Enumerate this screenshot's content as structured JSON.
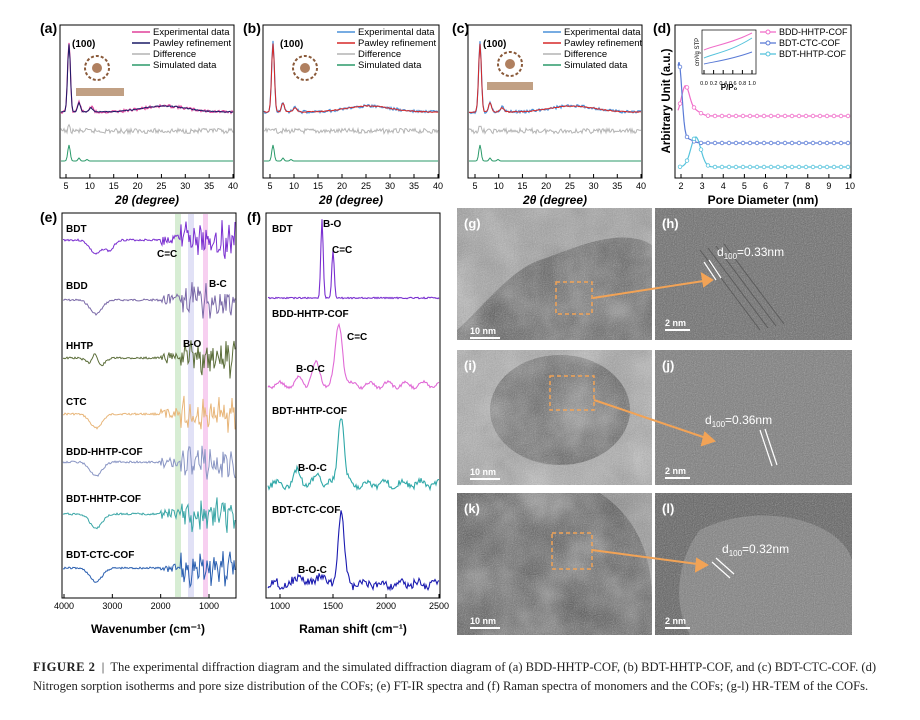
{
  "colors": {
    "exp": "#e0409a",
    "pawley": "#1a1a66",
    "diff": "#b4b4b4",
    "sim": "#2b9a6a",
    "pawley_c": "#d62828",
    "exp_b": "#4a90d9",
    "bdd": "#f06ec9",
    "ctc": "#5a7bd6",
    "hhtp": "#56c3dc"
  },
  "panels": {
    "a": {
      "label": "(a)",
      "peak": "(100)",
      "xlabel": "2θ (degree)",
      "ticks": [
        "5",
        "10",
        "15",
        "20",
        "25",
        "30",
        "35",
        "40"
      ],
      "legend": [
        "Experimental data",
        "Pawley refinement",
        "Difference",
        "Simulated data"
      ]
    },
    "b": {
      "label": "(b)",
      "peak": "(100)",
      "xlabel": "2θ (degree)",
      "ticks": [
        "5",
        "10",
        "15",
        "20",
        "25",
        "30",
        "35",
        "40"
      ],
      "legend": [
        "Experimental data",
        "Pawley refinement",
        "Difference",
        "Simulated data"
      ]
    },
    "c": {
      "label": "(c)",
      "peak": "(100)",
      "xlabel": "2θ (degree)",
      "ticks": [
        "5",
        "10",
        "15",
        "20",
        "25",
        "30",
        "35",
        "40"
      ],
      "legend": [
        "Experimental data",
        "Pawley refinement",
        "Difference",
        "Simulated data"
      ]
    },
    "d": {
      "label": "(d)",
      "ylabel": "Arbitrary Unit (a.u.)",
      "xlabel": "Pore Diameter (nm)",
      "ticks": [
        "2",
        "3",
        "4",
        "5",
        "6",
        "7",
        "8",
        "9",
        "10"
      ],
      "legend": [
        "BDD-HHTP-COF",
        "BDT-CTC-COF",
        "BDT-HHTP-COF"
      ],
      "inset": {
        "ylabel": "cm³/g STP",
        "xlabel": "P/P₀",
        "ticks": [
          "0.0",
          "0.2",
          "0.4",
          "0.6",
          "0.8",
          "1.0"
        ]
      }
    },
    "e": {
      "label": "(e)",
      "xlabel": "Wavenumber (cm⁻¹)",
      "ticks": [
        "4000",
        "3000",
        "2000",
        "1000"
      ],
      "traces": [
        "BDT",
        "BDD",
        "HHTP",
        "CTC",
        "BDD-HHTP-COF",
        "BDT-HHTP-COF",
        "BDT-CTC-COF"
      ],
      "annotations": [
        "C=C",
        "B-C",
        "B-O"
      ]
    },
    "f": {
      "label": "(f)",
      "xlabel": "Raman shift (cm⁻¹)",
      "ticks": [
        "1000",
        "1500",
        "2000",
        "2500"
      ],
      "traces": [
        "BDT",
        "BDD-HHTP-COF",
        "BDT-HHTP-COF",
        "BDT-CTC-COF"
      ],
      "annotations": [
        "B-O",
        "C=C",
        "C=C",
        "B-O-C",
        "B-O-C",
        "B-O-C"
      ]
    },
    "tem": {
      "labels": [
        "(g)",
        "(h)",
        "(i)",
        "(j)",
        "(k)",
        "(l)"
      ],
      "scales": [
        "10 nm",
        "2 nm",
        "10 nm",
        "2 nm",
        "10 nm",
        "2 nm"
      ],
      "d_values": [
        "d",
        "100",
        "=0.33nm",
        "d",
        "100",
        "=0.36nm",
        "d",
        "100",
        "=0.32nm"
      ]
    }
  },
  "chart_data": [
    {
      "type": "line",
      "panel": "a",
      "title": "",
      "xlabel": "2θ (degree)",
      "ylabel": "",
      "xlim": [
        2,
        40
      ],
      "series": [
        {
          "name": "Experimental data"
        },
        {
          "name": "Pawley refinement"
        },
        {
          "name": "Difference"
        },
        {
          "name": "Simulated data"
        }
      ],
      "peaks": [
        {
          "x": 2.8,
          "label": "(100)"
        }
      ]
    },
    {
      "type": "line",
      "panel": "b",
      "title": "",
      "xlabel": "2θ (degree)",
      "ylabel": "",
      "xlim": [
        2,
        40
      ],
      "series": [
        {
          "name": "Experimental data"
        },
        {
          "name": "Pawley refinement"
        },
        {
          "name": "Difference"
        },
        {
          "name": "Simulated data"
        }
      ],
      "peaks": [
        {
          "x": 3.0,
          "label": "(100)"
        }
      ]
    },
    {
      "type": "line",
      "panel": "c",
      "title": "",
      "xlabel": "2θ (degree)",
      "ylabel": "",
      "xlim": [
        2,
        40
      ],
      "series": [
        {
          "name": "Experimental data"
        },
        {
          "name": "Pawley refinement"
        },
        {
          "name": "Difference"
        },
        {
          "name": "Simulated data"
        }
      ],
      "peaks": [
        {
          "x": 3.6,
          "label": "(100)"
        }
      ]
    },
    {
      "type": "line",
      "panel": "d",
      "title": "",
      "xlabel": "Pore Diameter (nm)",
      "ylabel": "Arbitrary Unit (a.u.)",
      "xlim": [
        1.5,
        10
      ],
      "series": [
        {
          "name": "BDD-HHTP-COF",
          "peak_x": 2.2
        },
        {
          "name": "BDT-CTC-COF",
          "peak_x": 1.9
        },
        {
          "name": "BDT-HHTP-COF",
          "peak_x": 2.7
        }
      ]
    },
    {
      "type": "line",
      "panel": "e",
      "title": "",
      "xlabel": "Wavenumber (cm⁻¹)",
      "ylabel": "",
      "xlim": [
        4000,
        500
      ],
      "series": [
        {
          "name": "BDT"
        },
        {
          "name": "BDD"
        },
        {
          "name": "HHTP"
        },
        {
          "name": "CTC"
        },
        {
          "name": "BDD-HHTP-COF"
        },
        {
          "name": "BDT-HHTP-COF"
        },
        {
          "name": "BDT-CTC-COF"
        }
      ]
    },
    {
      "type": "line",
      "panel": "f",
      "title": "",
      "xlabel": "Raman shift (cm⁻¹)",
      "ylabel": "",
      "xlim": [
        900,
        2500
      ],
      "series": [
        {
          "name": "BDT"
        },
        {
          "name": "BDD-HHTP-COF"
        },
        {
          "name": "BDT-HHTP-COF"
        },
        {
          "name": "BDT-CTC-COF"
        }
      ]
    }
  ],
  "caption": {
    "fig": "FIGURE 2",
    "sep": "|",
    "text": "The experimental diffraction diagram and the simulated diffraction diagram of (a) BDD-HHTP-COF, (b) BDT-HHTP-COF, and (c) BDT-CTC-COF. (d) Nitrogen sorption isotherms and pore size distribution of the COFs; (e) FT-IR spectra and (f) Raman spectra of monomers and the COFs; (g-l) HR-TEM of the COFs."
  }
}
